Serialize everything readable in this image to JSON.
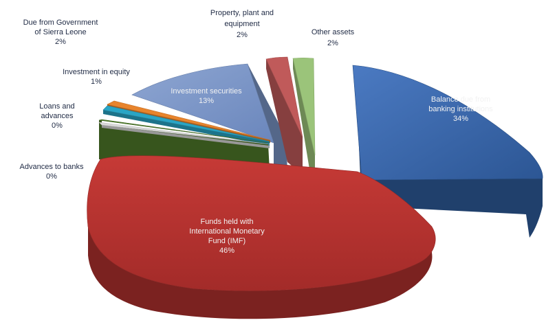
{
  "chart_data": {
    "type": "pie",
    "style": "3d-exploded",
    "title": "",
    "legend": "none",
    "slices": [
      {
        "name": [
          "Balance due from",
          "banking institutions"
        ],
        "value_label": "34%",
        "value": 34,
        "color": "#2e5b9a"
      },
      {
        "name": [
          "Funds held with",
          "International Monetary",
          "Fund (IMF)"
        ],
        "value_label": "46%",
        "value": 46,
        "color": "#b0302e"
      },
      {
        "name": [
          "Advances to banks"
        ],
        "value_label": "0%",
        "value": 0,
        "color": "#d9d9d9"
      },
      {
        "name": [
          "Loans and",
          "advances"
        ],
        "value_label": "0%",
        "value": 0,
        "color": "#4e7a2a"
      },
      {
        "name": [
          "Investment in equity"
        ],
        "value_label": "1%",
        "value": 1,
        "color": "#2aa5c5"
      },
      {
        "name": [
          "Due from Government",
          "of Sierra Leone"
        ],
        "value_label": "2%",
        "value": 2,
        "color": "#e8842c"
      },
      {
        "name": [
          "Investment securities"
        ],
        "value_label": "13%",
        "value": 13,
        "color": "#7893c4"
      },
      {
        "name": [
          "Property, plant and",
          "equipment"
        ],
        "value_label": "2%",
        "value": 2,
        "color": "#c05a5a"
      },
      {
        "name": [
          "Other assets"
        ],
        "value_label": "2%",
        "value": 2,
        "color": "#9bc47a"
      }
    ]
  }
}
